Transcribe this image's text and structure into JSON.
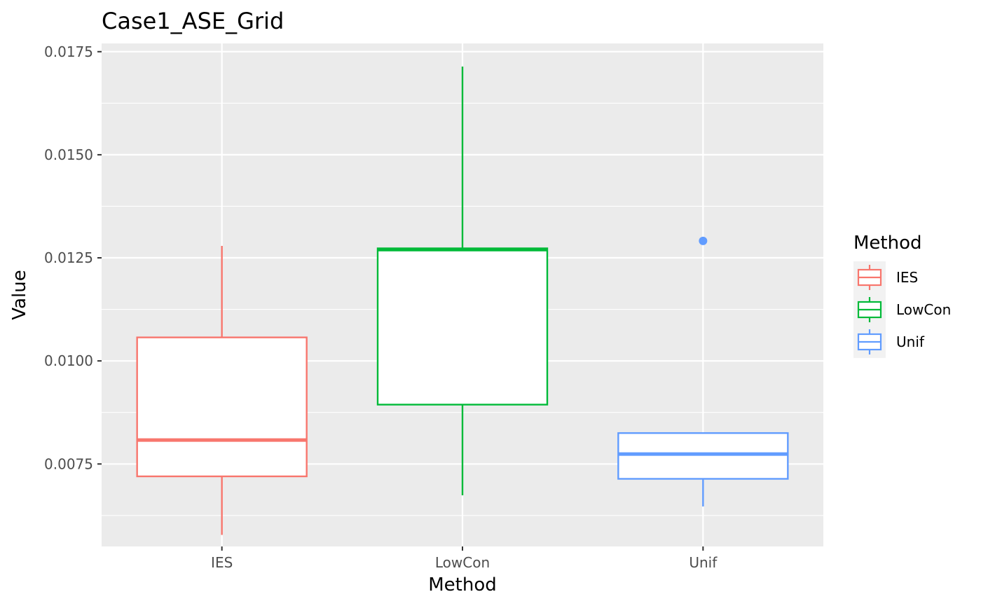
{
  "chart_data": {
    "type": "boxplot",
    "title": "Case1_ASE_Grid",
    "xlabel": "Method",
    "ylabel": "Value",
    "ylim": [
      0.0055,
      0.0177
    ],
    "y_ticks": [
      0.0075,
      0.01,
      0.0125,
      0.015,
      0.0175
    ],
    "y_tick_labels": [
      "0.0075",
      "0.0100",
      "0.0125",
      "0.0150",
      "0.0175"
    ],
    "y_minor_ticks": [
      0.00625,
      0.00875,
      0.01125,
      0.01375,
      0.01625
    ],
    "categories": [
      "IES",
      "LowCon",
      "Unif"
    ],
    "boxes": [
      {
        "name": "IES",
        "color": "#F8766D",
        "whisker_low": 0.00578,
        "q1": 0.0072,
        "median": 0.00808,
        "q3": 0.01057,
        "whisker_high": 0.01279,
        "outliers": []
      },
      {
        "name": "LowCon",
        "color": "#00BA38",
        "whisker_low": 0.00674,
        "q1": 0.00894,
        "median": 0.0127,
        "q3": 0.01273,
        "whisker_high": 0.01714,
        "outliers": []
      },
      {
        "name": "Unif",
        "color": "#619CFF",
        "whisker_low": 0.00647,
        "q1": 0.00714,
        "median": 0.00774,
        "q3": 0.00825,
        "whisker_high": 0.00825,
        "outliers": [
          0.01291
        ]
      }
    ],
    "legend": {
      "title": "Method",
      "position": "right",
      "items": [
        "IES",
        "LowCon",
        "Unif"
      ]
    },
    "grid": true,
    "panel_background": "#EBEBEB",
    "grid_color": "#FFFFFF"
  }
}
